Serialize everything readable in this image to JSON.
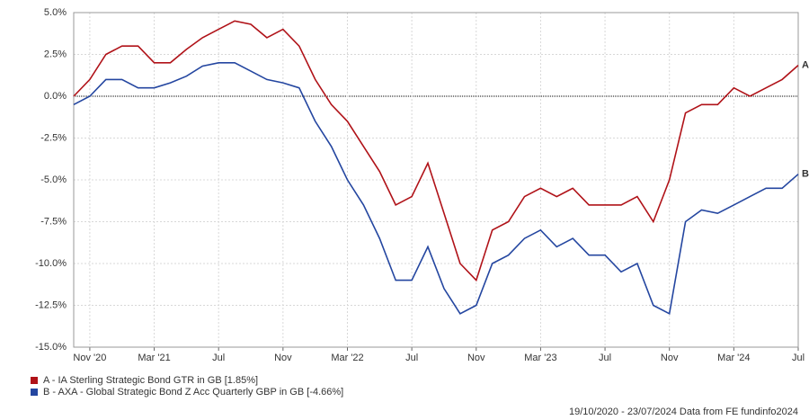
{
  "chart_data": {
    "type": "line",
    "x": [
      "2020-10",
      "2020-11",
      "2020-12",
      "2021-01",
      "2021-02",
      "2021-03",
      "2021-04",
      "2021-05",
      "2021-06",
      "2021-07",
      "2021-08",
      "2021-09",
      "2021-10",
      "2021-11",
      "2021-12",
      "2022-01",
      "2022-02",
      "2022-03",
      "2022-04",
      "2022-05",
      "2022-06",
      "2022-07",
      "2022-08",
      "2022-09",
      "2022-10",
      "2022-11",
      "2022-12",
      "2023-01",
      "2023-02",
      "2023-03",
      "2023-04",
      "2023-05",
      "2023-06",
      "2023-07",
      "2023-08",
      "2023-09",
      "2023-10",
      "2023-11",
      "2023-12",
      "2024-01",
      "2024-02",
      "2024-03",
      "2024-04",
      "2024-05",
      "2024-06",
      "2024-07"
    ],
    "series": [
      {
        "name": "A - IA Sterling Strategic Bond GTR in GB [1.85%]",
        "label": "A",
        "color": "#b01218",
        "values": [
          0,
          1.0,
          2.5,
          3.0,
          3.0,
          2.0,
          2.0,
          2.8,
          3.5,
          4.0,
          4.5,
          4.3,
          3.5,
          4.0,
          3.0,
          1.0,
          -0.5,
          -1.5,
          -3.0,
          -4.5,
          -6.5,
          -6.0,
          -4.0,
          -7.0,
          -10.0,
          -11.0,
          -8.0,
          -7.5,
          -6.0,
          -5.5,
          -6.0,
          -5.5,
          -6.5,
          -6.5,
          -6.5,
          -6.0,
          -7.5,
          -5.0,
          -1.0,
          -0.5,
          -0.5,
          0.5,
          0.0,
          0.5,
          1.0,
          1.85
        ]
      },
      {
        "name": "B - AXA - Global Strategic Bond Z Acc Quarterly GBP in GB [-4.66%]",
        "label": "B",
        "color": "#2446a0",
        "values": [
          -0.5,
          0.0,
          1.0,
          1.0,
          0.5,
          0.5,
          0.8,
          1.2,
          1.8,
          2.0,
          2.0,
          1.5,
          1.0,
          0.8,
          0.5,
          -1.5,
          -3.0,
          -5.0,
          -6.5,
          -8.5,
          -11.0,
          -11.0,
          -9.0,
          -11.5,
          -13.0,
          -12.5,
          -10.0,
          -9.5,
          -8.5,
          -8.0,
          -9.0,
          -8.5,
          -9.5,
          -9.5,
          -10.5,
          -10.0,
          -12.5,
          -13.0,
          -7.5,
          -6.8,
          -7.0,
          -6.5,
          -6.0,
          -5.5,
          -5.5,
          -4.66
        ]
      }
    ],
    "xlim": [
      "2020-10",
      "2024-07"
    ],
    "xticks": [
      {
        "value": "2020-11",
        "label": "Nov '20"
      },
      {
        "value": "2021-03",
        "label": "Mar '21"
      },
      {
        "value": "2021-07",
        "label": "Jul"
      },
      {
        "value": "2021-11",
        "label": "Nov"
      },
      {
        "value": "2022-03",
        "label": "Mar '22"
      },
      {
        "value": "2022-07",
        "label": "Jul"
      },
      {
        "value": "2022-11",
        "label": "Nov"
      },
      {
        "value": "2023-03",
        "label": "Mar '23"
      },
      {
        "value": "2023-07",
        "label": "Jul"
      },
      {
        "value": "2023-11",
        "label": "Nov"
      },
      {
        "value": "2024-03",
        "label": "Mar '24"
      },
      {
        "value": "2024-07",
        "label": "Jul"
      }
    ],
    "ylim": [
      -15,
      5
    ],
    "yticks": [
      {
        "value": 5,
        "label": "5.0%"
      },
      {
        "value": 2.5,
        "label": "2.5%"
      },
      {
        "value": 0,
        "label": "0.0%"
      },
      {
        "value": -2.5,
        "label": "-2.5%"
      },
      {
        "value": -5,
        "label": "-5.0%"
      },
      {
        "value": -7.5,
        "label": "-7.5%"
      },
      {
        "value": -10,
        "label": "-10.0%"
      },
      {
        "value": -12.5,
        "label": "-12.5%"
      },
      {
        "value": -15,
        "label": "-15.0%"
      }
    ],
    "grid": true,
    "footer": "19/10/2020 - 23/07/2024 Data from FE fundinfo2024"
  }
}
